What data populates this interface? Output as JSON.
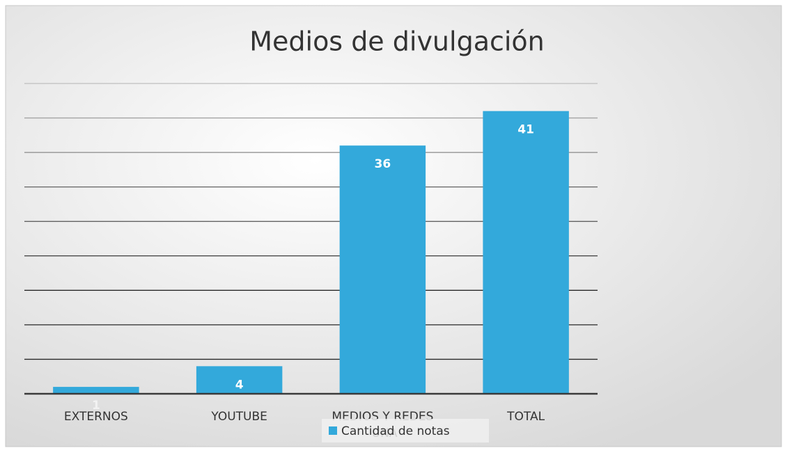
{
  "chart_data": {
    "type": "bar",
    "title": "Medios de divulgación",
    "categories": [
      "EXTERNOS",
      "YOUTUBE",
      "MEDIOS Y REDES UNA",
      "TOTAL"
    ],
    "series": [
      {
        "name": "Cantidad de notas",
        "color": "#33a9db",
        "values": [
          1,
          4,
          36,
          41
        ]
      }
    ],
    "ylim": [
      0,
      45
    ],
    "yticks": [
      0,
      5,
      10,
      15,
      20,
      25,
      30,
      35,
      40,
      45
    ],
    "grid": true
  }
}
